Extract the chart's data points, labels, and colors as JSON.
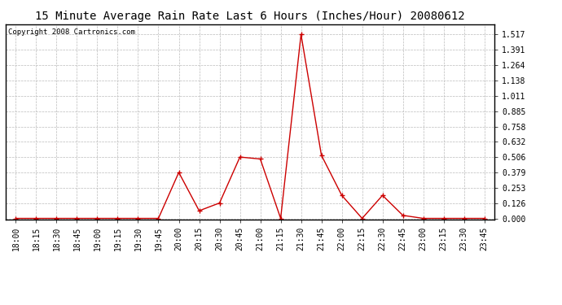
{
  "title": "15 Minute Average Rain Rate Last 6 Hours (Inches/Hour) 20080612",
  "copyright": "Copyright 2008 Cartronics.com",
  "x_labels": [
    "18:00",
    "18:15",
    "18:30",
    "18:45",
    "19:00",
    "19:15",
    "19:30",
    "19:45",
    "20:00",
    "20:15",
    "20:30",
    "20:45",
    "21:00",
    "21:15",
    "21:30",
    "21:45",
    "22:00",
    "22:15",
    "22:30",
    "22:45",
    "23:00",
    "23:15",
    "23:30",
    "23:45"
  ],
  "y_values": [
    0.0,
    0.0,
    0.0,
    0.0,
    0.0,
    0.0,
    0.0,
    0.0,
    0.379,
    0.063,
    0.127,
    0.506,
    0.49,
    0.0,
    1.517,
    0.521,
    0.19,
    0.0,
    0.19,
    0.025,
    0.0,
    0.0,
    0.0,
    0.0
  ],
  "yticks": [
    0.0,
    0.126,
    0.253,
    0.379,
    0.506,
    0.632,
    0.758,
    0.885,
    1.011,
    1.138,
    1.264,
    1.391,
    1.517
  ],
  "line_color": "#cc0000",
  "marker_color": "#cc0000",
  "bg_color": "#ffffff",
  "grid_color": "#bbbbbb",
  "title_fontsize": 10,
  "copyright_fontsize": 6.5,
  "tick_fontsize": 7,
  "ylim_min": -0.01,
  "ylim_max": 1.6
}
